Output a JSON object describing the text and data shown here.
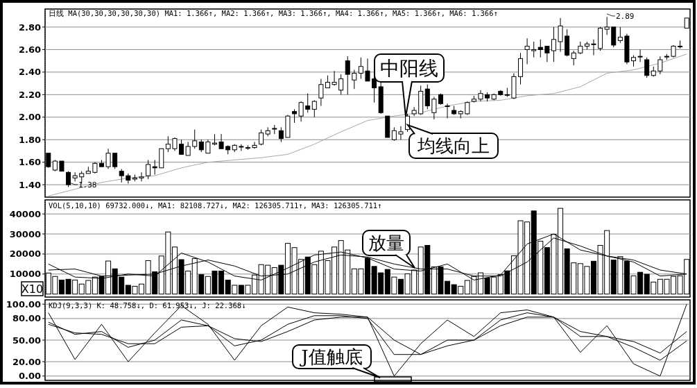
{
  "chart_data": [
    {
      "type": "candlestick",
      "color": "#000000",
      "grid": "y",
      "categories": [
        null,
        null,
        null,
        null,
        null,
        null,
        null,
        null,
        null,
        null,
        null,
        null,
        null,
        null,
        null,
        null,
        null,
        null,
        null,
        null,
        null,
        null,
        null,
        null,
        null,
        null,
        null,
        null,
        null,
        null,
        null,
        null,
        null,
        null,
        null,
        null,
        null,
        null,
        null,
        null,
        null,
        null,
        null,
        null,
        null,
        null,
        null,
        null,
        null,
        null,
        null,
        null,
        null,
        null,
        null,
        null,
        null,
        null,
        null,
        null,
        null,
        null,
        null,
        null,
        null,
        null,
        null,
        null,
        null,
        null,
        null,
        null,
        null,
        null,
        null,
        null,
        null,
        null,
        null,
        null,
        null,
        null,
        null,
        null,
        null,
        null,
        null,
        null,
        null,
        null,
        null,
        null,
        null,
        null,
        null,
        null,
        null
      ],
      "ohlc": [
        [
          1.68,
          1.68,
          1.55,
          1.56
        ],
        [
          1.53,
          1.62,
          1.52,
          1.61
        ],
        [
          1.61,
          1.61,
          1.52,
          1.52
        ],
        [
          1.51,
          1.52,
          1.38,
          1.4
        ],
        [
          1.46,
          1.51,
          1.43,
          1.48
        ],
        [
          1.47,
          1.52,
          1.41,
          1.5
        ],
        [
          1.5,
          1.56,
          1.5,
          1.52
        ],
        [
          1.51,
          1.6,
          1.5,
          1.59
        ],
        [
          1.59,
          1.62,
          1.56,
          1.56
        ],
        [
          1.56,
          1.72,
          1.54,
          1.68
        ],
        [
          1.68,
          1.68,
          1.54,
          1.56
        ],
        [
          1.52,
          1.54,
          1.42,
          1.48
        ],
        [
          1.48,
          1.5,
          1.41,
          1.44
        ],
        [
          1.45,
          1.49,
          1.43,
          1.46
        ],
        [
          1.46,
          1.51,
          1.43,
          1.47
        ],
        [
          1.48,
          1.62,
          1.45,
          1.58
        ],
        [
          1.56,
          1.62,
          1.49,
          1.55
        ],
        [
          1.55,
          1.72,
          1.55,
          1.72
        ],
        [
          1.72,
          1.83,
          1.69,
          1.76
        ],
        [
          1.72,
          1.82,
          1.7,
          1.81
        ],
        [
          1.76,
          1.8,
          1.67,
          1.67
        ],
        [
          1.66,
          1.78,
          1.66,
          1.74
        ],
        [
          1.74,
          1.89,
          1.72,
          1.79
        ],
        [
          1.78,
          1.8,
          1.69,
          1.71
        ],
        [
          1.68,
          1.8,
          1.68,
          1.78
        ],
        [
          1.76,
          1.85,
          1.75,
          1.77
        ],
        [
          1.78,
          1.85,
          1.72,
          1.72
        ],
        [
          1.74,
          1.75,
          1.67,
          1.71
        ],
        [
          1.71,
          1.76,
          1.69,
          1.75
        ],
        [
          1.74,
          1.76,
          1.7,
          1.74
        ],
        [
          1.73,
          1.75,
          1.71,
          1.73
        ],
        [
          1.73,
          1.78,
          1.72,
          1.75
        ],
        [
          1.76,
          1.89,
          1.75,
          1.86
        ],
        [
          1.85,
          1.91,
          1.83,
          1.88
        ],
        [
          1.9,
          1.93,
          1.85,
          1.9
        ],
        [
          1.88,
          1.91,
          1.78,
          1.81
        ],
        [
          1.82,
          2.02,
          1.82,
          2.01
        ],
        [
          2.05,
          2.07,
          1.95,
          2.03
        ],
        [
          2.01,
          2.14,
          1.96,
          2.13
        ],
        [
          2.1,
          2.21,
          2.04,
          2.07
        ],
        [
          2.07,
          2.15,
          2.0,
          2.14
        ],
        [
          2.17,
          2.34,
          2.1,
          2.29
        ],
        [
          2.26,
          2.37,
          2.26,
          2.31
        ],
        [
          2.29,
          2.41,
          2.28,
          2.31
        ],
        [
          2.24,
          2.38,
          2.2,
          2.34
        ],
        [
          2.5,
          2.54,
          2.2,
          2.38
        ],
        [
          2.33,
          2.42,
          2.25,
          2.39
        ],
        [
          2.39,
          2.53,
          2.34,
          2.45
        ],
        [
          2.41,
          2.52,
          2.32,
          2.32
        ],
        [
          2.34,
          2.36,
          2.13,
          2.26
        ],
        [
          2.27,
          2.31,
          2.03,
          2.04
        ],
        [
          2.01,
          2.01,
          1.82,
          1.82
        ],
        [
          1.8,
          1.91,
          1.79,
          1.88
        ],
        [
          1.85,
          1.92,
          1.8,
          1.87
        ],
        [
          1.89,
          2.03,
          1.87,
          2.01
        ],
        [
          2.03,
          2.09,
          2.01,
          2.06
        ],
        [
          2.03,
          2.28,
          2.02,
          2.23
        ],
        [
          2.25,
          2.29,
          2.07,
          2.1
        ],
        [
          2.04,
          2.18,
          1.98,
          2.16
        ],
        [
          2.2,
          2.21,
          2.11,
          2.12
        ],
        [
          2.1,
          2.12,
          1.99,
          2.1
        ],
        [
          2.06,
          2.1,
          2.02,
          2.03
        ],
        [
          2.03,
          2.06,
          1.99,
          2.05
        ],
        [
          2.03,
          2.14,
          2.02,
          2.13
        ],
        [
          2.14,
          2.19,
          2.13,
          2.16
        ],
        [
          2.16,
          2.24,
          2.14,
          2.21
        ],
        [
          2.2,
          2.22,
          2.14,
          2.17
        ],
        [
          2.16,
          2.21,
          2.15,
          2.2
        ],
        [
          2.23,
          2.24,
          2.19,
          2.2
        ],
        [
          2.2,
          2.26,
          2.18,
          2.2
        ],
        [
          2.17,
          2.39,
          2.16,
          2.36
        ],
        [
          2.36,
          2.57,
          2.29,
          2.52
        ],
        [
          2.6,
          2.7,
          2.47,
          2.63
        ],
        [
          2.59,
          2.67,
          2.53,
          2.6
        ],
        [
          2.62,
          2.69,
          2.53,
          2.6
        ],
        [
          2.63,
          2.63,
          2.49,
          2.57
        ],
        [
          2.59,
          2.8,
          2.49,
          2.69
        ],
        [
          2.67,
          2.88,
          2.58,
          2.81
        ],
        [
          2.72,
          2.78,
          2.54,
          2.55
        ],
        [
          2.52,
          2.59,
          2.46,
          2.57
        ],
        [
          2.57,
          2.67,
          2.56,
          2.63
        ],
        [
          2.63,
          2.67,
          2.6,
          2.65
        ],
        [
          2.65,
          2.69,
          2.55,
          2.65
        ],
        [
          2.61,
          2.8,
          2.59,
          2.79
        ],
        [
          2.78,
          2.89,
          2.73,
          2.8
        ],
        [
          2.8,
          2.8,
          2.62,
          2.64
        ],
        [
          2.68,
          2.8,
          2.66,
          2.71
        ],
        [
          2.72,
          2.74,
          2.47,
          2.49
        ],
        [
          2.5,
          2.55,
          2.45,
          2.53
        ],
        [
          2.54,
          2.6,
          2.49,
          2.54
        ],
        [
          2.51,
          2.53,
          2.35,
          2.37
        ],
        [
          2.37,
          2.45,
          2.36,
          2.41
        ],
        [
          2.41,
          2.54,
          2.38,
          2.51
        ],
        [
          2.54,
          2.56,
          2.51,
          2.54
        ],
        [
          2.54,
          2.64,
          2.53,
          2.63
        ],
        [
          2.63,
          2.68,
          2.61,
          2.63
        ],
        [
          2.79,
          2.88,
          2.79,
          2.88
        ]
      ],
      "series": [
        {
          "type": "line",
          "color": "#a8a8a8",
          "values": [
            1.3,
            null,
            null,
            null,
            1.36,
            null,
            null,
            null,
            1.42,
            null,
            null,
            null,
            1.46,
            null,
            null,
            null,
            1.48,
            null,
            null,
            null,
            1.55,
            null,
            null,
            null,
            1.6,
            null,
            null,
            null,
            1.62,
            null,
            null,
            null,
            1.64,
            null,
            null,
            null,
            1.67,
            null,
            null,
            null,
            1.76,
            null,
            null,
            null,
            1.87,
            null,
            null,
            null,
            1.97,
            null,
            null,
            null,
            2.01,
            null,
            null,
            null,
            2.04,
            null,
            null,
            null,
            2.1,
            null,
            null,
            null,
            2.14,
            null,
            null,
            null,
            2.15,
            null,
            null,
            null,
            2.19,
            null,
            null,
            null,
            2.21,
            null,
            null,
            null,
            2.27,
            null,
            null,
            null,
            2.39,
            null,
            null,
            null,
            2.42,
            null,
            null,
            null,
            2.48,
            null,
            null,
            null,
            2.56
          ]
        }
      ],
      "ylim": [
        1.29,
        2.96
      ],
      "yticks": [
        {
          "value": 1.4,
          "label": "1.40"
        },
        {
          "value": 1.6,
          "label": "1.60"
        },
        {
          "value": 1.8,
          "label": "1.80"
        },
        {
          "value": 2.0,
          "label": "2.00"
        },
        {
          "value": 2.2,
          "label": "2.20"
        },
        {
          "value": 2.4,
          "label": "2.40"
        },
        {
          "value": 2.6,
          "label": "2.60"
        },
        {
          "value": 2.8,
          "label": "2.80"
        }
      ],
      "annotations": [
        "日线 MA(30,30,30,30,30,30) MA1: 1.366↑, MA2: 1.366↑, MA3: 1.366↑, MA4: 1.366↑, MA5: 1.366↑, MA6: 1.366↑",
        "1.38",
        "2.89",
        "中阳线",
        "均线向上"
      ]
    },
    {
      "type": "bar",
      "grid": "y",
      "categories": [
        null,
        null,
        null,
        null,
        null,
        null,
        null,
        null,
        null,
        null,
        null,
        null,
        null,
        null,
        null,
        null,
        null,
        null,
        null,
        null,
        null,
        null,
        null,
        null,
        null,
        null,
        null,
        null,
        null,
        null,
        null,
        null,
        null,
        null,
        null,
        null,
        null,
        null,
        null,
        null,
        null,
        null,
        null,
        null,
        null,
        null,
        null,
        null,
        null,
        null,
        null,
        null,
        null,
        null,
        null,
        null,
        null,
        null,
        null,
        null,
        null,
        null,
        null,
        null,
        null,
        null,
        null,
        null,
        null,
        null,
        null,
        null,
        null,
        null,
        null,
        null,
        null,
        null,
        null,
        null,
        null,
        null,
        null,
        null,
        null,
        null,
        null,
        null,
        null,
        null,
        null,
        null,
        null,
        null,
        null,
        null,
        null
      ],
      "series": [
        {
          "type": "bar",
          "values": [
            10500,
            8800,
            7000,
            7400,
            7000,
            5000,
            6800,
            8500,
            8800,
            16500,
            12600,
            8500,
            4400,
            3900,
            5000,
            16700,
            11100,
            19000,
            31000,
            23500,
            17200,
            11500,
            17700,
            9700,
            8800,
            11500,
            11500,
            7000,
            4400,
            4400,
            4400,
            9500,
            14700,
            14400,
            13200,
            14400,
            25300,
            23200,
            17300,
            18500,
            14700,
            21400,
            16700,
            23500,
            26700,
            22000,
            12600,
            12600,
            17900,
            13800,
            10600,
            12300,
            8500,
            7400,
            10100,
            12000,
            23500,
            24300,
            13600,
            13600,
            6400,
            4700,
            3900,
            6800,
            8800,
            10600,
            8000,
            8500,
            9700,
            11600,
            19100,
            36600,
            36000,
            41500,
            26400,
            23200,
            29800,
            42800,
            22600,
            15600,
            15200,
            13800,
            16400,
            24300,
            31700,
            17000,
            18700,
            16400,
            9100,
            10900,
            9900,
            6000,
            7400,
            7400,
            8800,
            9100,
            17300
          ],
          "colors": [
            "#ffffff",
            "#ffffff",
            "#000000",
            "#000000",
            "#ffffff",
            "#ffffff",
            "#ffffff",
            "#ffffff",
            "#000000",
            "#ffffff",
            "#000000",
            "#000000",
            "#000000",
            "#ffffff",
            "#ffffff",
            "#ffffff",
            "#000000",
            "#ffffff",
            "#ffffff",
            "#ffffff",
            "#000000",
            "#ffffff",
            "#ffffff",
            "#000000",
            "#ffffff",
            "#000000",
            "#000000",
            "#000000",
            "#ffffff",
            "#000000",
            "#ffffff",
            "#ffffff",
            "#ffffff",
            "#ffffff",
            "#ffffff",
            "#000000",
            "#ffffff",
            "#ffffff",
            "#ffffff",
            "#000000",
            "#ffffff",
            "#ffffff",
            "#ffffff",
            "#ffffff",
            "#ffffff",
            "#ffffff",
            "#ffffff",
            "#ffffff",
            "#000000",
            "#000000",
            "#000000",
            "#000000",
            "#ffffff",
            "#000000",
            "#ffffff",
            "#ffffff",
            "#ffffff",
            "#000000",
            "#ffffff",
            "#000000",
            "#000000",
            "#000000",
            "#ffffff",
            "#ffffff",
            "#ffffff",
            "#ffffff",
            "#000000",
            "#ffffff",
            "#ffffff",
            "#000000",
            "#ffffff",
            "#ffffff",
            "#ffffff",
            "#000000",
            "#ffffff",
            "#000000",
            "#ffffff",
            "#ffffff",
            "#000000",
            "#ffffff",
            "#ffffff",
            "#ffffff",
            "#000000",
            "#ffffff",
            "#ffffff",
            "#000000",
            "#ffffff",
            "#000000",
            "#ffffff",
            "#000000",
            "#000000",
            "#ffffff",
            "#ffffff",
            "#ffffff",
            "#ffffff",
            "#ffffff",
            "#ffffff"
          ]
        },
        {
          "type": "line",
          "color": "#000000",
          "values": [
            15000,
            null,
            null,
            null,
            8500,
            null,
            null,
            null,
            7800,
            null,
            null,
            null,
            10000,
            null,
            null,
            null,
            9000,
            null,
            null,
            null,
            20500,
            null,
            null,
            null,
            16000,
            null,
            null,
            null,
            9000,
            null,
            null,
            null,
            7000,
            null,
            null,
            null,
            13000,
            null,
            null,
            null,
            19500,
            null,
            null,
            null,
            21000,
            null,
            null,
            null,
            18000,
            null,
            null,
            null,
            12500,
            null,
            null,
            null,
            11500,
            null,
            null,
            null,
            15000,
            null,
            null,
            null,
            7000,
            null,
            null,
            null,
            9500,
            null,
            null,
            null,
            25000,
            null,
            null,
            null,
            30000,
            null,
            null,
            null,
            22000,
            null,
            null,
            null,
            19000,
            null,
            null,
            null,
            16000,
            null,
            null,
            null,
            9000,
            null,
            null,
            null,
            10000
          ]
        },
        {
          "type": "line",
          "color": "#000000",
          "values": [
            12000,
            null,
            null,
            null,
            12500,
            null,
            null,
            null,
            9000,
            null,
            null,
            null,
            9500,
            null,
            null,
            null,
            10000,
            null,
            null,
            null,
            14000,
            null,
            null,
            null,
            17000,
            null,
            null,
            null,
            14000,
            null,
            null,
            null,
            9000,
            null,
            null,
            null,
            10000,
            null,
            null,
            null,
            16000,
            null,
            null,
            null,
            19500,
            null,
            null,
            null,
            18500,
            null,
            null,
            null,
            15000,
            null,
            null,
            null,
            12500,
            null,
            null,
            null,
            12500,
            null,
            null,
            null,
            9000,
            null,
            null,
            null,
            9000,
            null,
            null,
            null,
            16000,
            null,
            null,
            null,
            28000,
            null,
            null,
            null,
            24000,
            null,
            null,
            null,
            19000,
            null,
            null,
            null,
            17000,
            null,
            null,
            null,
            12000,
            null,
            null,
            null,
            10000
          ]
        }
      ],
      "ylim": [
        -1500,
        47000
      ],
      "yticks": [
        10000,
        20000,
        30000,
        40000
      ],
      "annotations": [
        "VOL(5,10,10) 69732.000↓, MA1: 82108.727↓, MA2: 126305.711↑, MA3: 126305.711↑",
        "X10",
        "放量"
      ]
    },
    {
      "type": "line",
      "grid": "y",
      "categories": [
        null,
        null,
        null,
        null,
        null,
        null,
        null,
        null,
        null,
        null,
        null,
        null,
        null,
        null,
        null,
        null,
        null,
        null,
        null,
        null,
        null,
        null,
        null,
        null,
        null,
        null,
        null,
        null,
        null,
        null,
        null,
        null,
        null,
        null,
        null,
        null,
        null,
        null,
        null,
        null,
        null,
        null,
        null,
        null,
        null,
        null,
        null,
        null,
        null,
        null,
        null,
        null,
        null,
        null,
        null,
        null,
        null,
        null,
        null,
        null,
        null,
        null,
        null,
        null,
        null,
        null,
        null,
        null,
        null,
        null,
        null,
        null,
        null,
        null,
        null,
        null,
        null,
        null,
        null,
        null,
        null,
        null,
        null,
        null,
        null,
        null,
        null,
        null,
        null,
        null,
        null,
        null,
        null,
        null,
        null,
        null,
        null
      ],
      "series": [
        {
          "color": "#000000",
          "values": [
            75,
            null,
            null,
            null,
            58,
            null,
            null,
            null,
            62,
            null,
            null,
            null,
            40,
            null,
            null,
            null,
            50,
            null,
            null,
            null,
            78,
            null,
            null,
            null,
            70,
            null,
            null,
            null,
            42,
            null,
            null,
            null,
            50,
            null,
            null,
            null,
            72,
            null,
            null,
            null,
            84,
            null,
            null,
            null,
            84,
            null,
            null,
            null,
            80,
            null,
            null,
            null,
            30,
            null,
            null,
            null,
            30,
            null,
            null,
            null,
            50,
            null,
            null,
            null,
            50,
            null,
            null,
            null,
            78,
            null,
            null,
            null,
            88,
            null,
            null,
            null,
            82,
            null,
            null,
            null,
            55,
            null,
            null,
            null,
            55,
            null,
            null,
            null,
            40,
            null,
            null,
            null,
            22,
            null,
            null,
            null,
            49
          ]
        },
        {
          "color": "#000000",
          "values": [
            72,
            null,
            null,
            null,
            60,
            null,
            null,
            null,
            58,
            null,
            null,
            null,
            45,
            null,
            null,
            null,
            45,
            null,
            null,
            null,
            68,
            null,
            null,
            null,
            70,
            null,
            null,
            null,
            52,
            null,
            null,
            null,
            48,
            null,
            null,
            null,
            62,
            null,
            null,
            null,
            78,
            null,
            null,
            null,
            82,
            null,
            null,
            null,
            82,
            null,
            null,
            null,
            50,
            null,
            null,
            null,
            30,
            null,
            null,
            null,
            42,
            null,
            null,
            null,
            50,
            null,
            null,
            null,
            70,
            null,
            null,
            null,
            82,
            null,
            null,
            null,
            82,
            null,
            null,
            null,
            62,
            null,
            null,
            null,
            55,
            null,
            null,
            null,
            48,
            null,
            null,
            null,
            32,
            null,
            null,
            null,
            62
          ]
        },
        {
          "color": "#000000",
          "values": [
            88,
            null,
            null,
            null,
            23,
            null,
            null,
            null,
            72,
            null,
            null,
            null,
            20,
            null,
            null,
            null,
            60,
            null,
            null,
            null,
            98,
            null,
            null,
            null,
            72,
            null,
            null,
            null,
            22,
            null,
            null,
            null,
            70,
            null,
            null,
            null,
            96,
            null,
            null,
            null,
            88,
            null,
            null,
            null,
            86,
            null,
            null,
            null,
            82,
            null,
            null,
            null,
            0,
            null,
            null,
            null,
            45,
            null,
            null,
            null,
            78,
            null,
            null,
            null,
            55,
            null,
            null,
            null,
            88,
            null,
            null,
            null,
            92,
            null,
            null,
            null,
            82,
            null,
            null,
            null,
            33,
            null,
            null,
            null,
            70,
            null,
            null,
            null,
            17,
            null,
            null,
            null,
            0,
            null,
            null,
            null,
            100
          ]
        }
      ],
      "ylim": [
        -6,
        106
      ],
      "yticks": [
        {
          "value": 0,
          "label": "0.00"
        },
        {
          "value": 20,
          "label": "20.00"
        },
        {
          "value": 50,
          "label": "50.00"
        },
        {
          "value": 80,
          "label": "80.00"
        },
        {
          "value": 100,
          "label": "100.00"
        }
      ],
      "annotations": [
        "KDJ(9,3,3) K: 48.758↓, D: 61.953↓, J: 22.368↓",
        "J值触底"
      ]
    }
  ]
}
